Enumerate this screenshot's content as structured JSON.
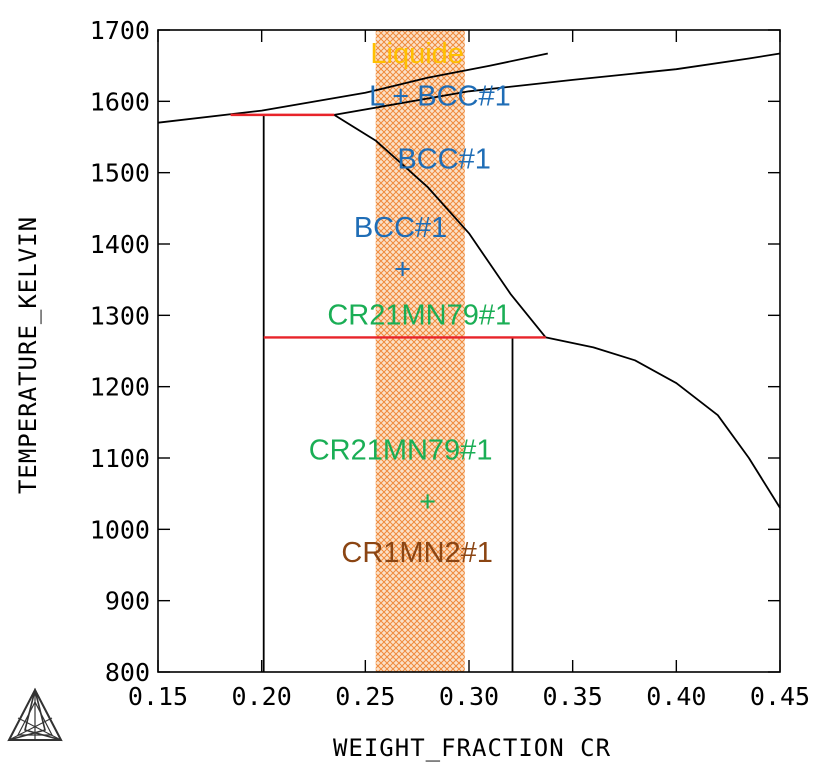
{
  "chart_data": {
    "type": "phase_diagram",
    "xlabel": "WEIGHT_FRACTION CR",
    "ylabel": "TEMPERATURE_KELVIN",
    "xlim": [
      0.15,
      0.45
    ],
    "ylim": [
      800,
      1700
    ],
    "x_ticks": [
      "0.15",
      "0.20",
      "0.25",
      "0.30",
      "0.35",
      "0.40",
      "0.45"
    ],
    "y_ticks": [
      "800",
      "900",
      "1000",
      "1100",
      "1200",
      "1300",
      "1400",
      "1500",
      "1600",
      "1700"
    ],
    "phase_boundaries": [
      {
        "name": "liquidus",
        "points": [
          [
            0.15,
            1570
          ],
          [
            0.2,
            1587
          ],
          [
            0.25,
            1612
          ],
          [
            0.28,
            1633
          ],
          [
            0.31,
            1650
          ],
          [
            0.338,
            1667
          ]
        ]
      },
      {
        "name": "solidus",
        "points": [
          [
            0.235,
            1581
          ],
          [
            0.3,
            1614
          ],
          [
            0.35,
            1630
          ],
          [
            0.4,
            1645
          ],
          [
            0.435,
            1660
          ],
          [
            0.45,
            1667
          ]
        ]
      },
      {
        "name": "bcc-solvus",
        "points": [
          [
            0.235,
            1581
          ],
          [
            0.255,
            1545
          ],
          [
            0.28,
            1480
          ],
          [
            0.3,
            1415
          ],
          [
            0.32,
            1330
          ],
          [
            0.337,
            1269
          ]
        ]
      },
      {
        "name": "cr1mn2-solvus",
        "points": [
          [
            0.337,
            1269
          ],
          [
            0.36,
            1255
          ],
          [
            0.38,
            1237
          ],
          [
            0.4,
            1205
          ],
          [
            0.42,
            1160
          ],
          [
            0.435,
            1100
          ],
          [
            0.45,
            1030
          ]
        ]
      },
      {
        "name": "left-vertical",
        "points": [
          [
            0.201,
            1581
          ],
          [
            0.201,
            800
          ]
        ]
      },
      {
        "name": "right-vertical",
        "points": [
          [
            0.321,
            1269
          ],
          [
            0.321,
            800
          ]
        ]
      }
    ],
    "invariant_lines": [
      {
        "name": "peritectic",
        "y": 1581,
        "x": [
          0.185,
          0.235
        ],
        "color": "#e8242a"
      },
      {
        "name": "eutectoid",
        "y": 1269,
        "x": [
          0.201,
          0.337
        ],
        "color": "#e8242a"
      }
    ],
    "highlight_band": {
      "x": [
        0.255,
        0.298
      ],
      "color": "#f4a460"
    },
    "regions": [
      {
        "text": "Liquide",
        "x": 0.275,
        "y": 1668,
        "color": "#ffc000"
      },
      {
        "text": "L + BCC#1",
        "x": 0.286,
        "y": 1608,
        "color": "#1f6db6"
      },
      {
        "text": "BCC#1",
        "x": 0.288,
        "y": 1520,
        "color": "#1f6db6"
      },
      {
        "text": "BCC#1",
        "x": 0.267,
        "y": 1424,
        "color": "#1f6db6"
      },
      {
        "text": "+",
        "x": 0.268,
        "y": 1366,
        "color": "#1f6db6"
      },
      {
        "text": "CR21MN79#1",
        "x": 0.276,
        "y": 1301,
        "color": "#1aae55"
      },
      {
        "text": "CR21MN79#1",
        "x": 0.267,
        "y": 1112,
        "color": "#1aae55"
      },
      {
        "text": "+",
        "x": 0.28,
        "y": 1040,
        "color": "#1aae55"
      },
      {
        "text": "CR1MN2#1",
        "x": 0.275,
        "y": 968,
        "color": "#8b4513"
      }
    ],
    "grid": false,
    "logo": "thermo-calc-triangle-icon"
  }
}
